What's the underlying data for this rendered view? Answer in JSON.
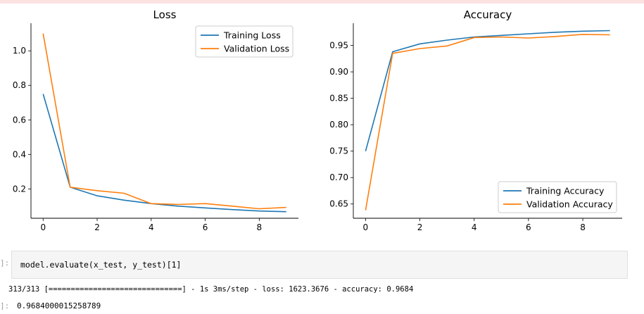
{
  "notebook": {
    "code": "model.evaluate(x_test, y_test)[1]",
    "in_prompt": "]:",
    "stdout": "313/313 [==============================] - 1s 3ms/step - loss: 1623.3676 - accuracy: 0.9684",
    "out_prompt": "]:",
    "out_value": "0.9684000015258789"
  },
  "colors": {
    "train": "#1f77b4",
    "val": "#ff7f0e"
  },
  "chart_data": [
    {
      "type": "line",
      "title": "Loss",
      "xlabel": "",
      "ylabel": "",
      "xlim": [
        -0.45,
        9.45
      ],
      "ylim": [
        0.03,
        1.16
      ],
      "xticks": [
        0,
        2,
        4,
        6,
        8
      ],
      "yticks": [
        0.2,
        0.4,
        0.6,
        0.8,
        1.0
      ],
      "ytick_labels": [
        "0.2",
        "0.4",
        "0.6",
        "0.8",
        "1.0"
      ],
      "legend_position": "top-right",
      "x": [
        0,
        1,
        2,
        3,
        4,
        5,
        6,
        7,
        8,
        9
      ],
      "series": [
        {
          "name": "Training Loss",
          "values": [
            0.75,
            0.21,
            0.16,
            0.135,
            0.115,
            0.1,
            0.09,
            0.08,
            0.072,
            0.068
          ]
        },
        {
          "name": "Validation Loss",
          "values": [
            1.1,
            0.21,
            0.19,
            0.175,
            0.115,
            0.11,
            0.115,
            0.1,
            0.085,
            0.093
          ]
        }
      ]
    },
    {
      "type": "line",
      "title": "Accuracy",
      "xlabel": "",
      "ylabel": "",
      "xlim": [
        -0.45,
        9.45
      ],
      "ylim": [
        0.623,
        0.992
      ],
      "xticks": [
        0,
        2,
        4,
        6,
        8
      ],
      "yticks": [
        0.65,
        0.7,
        0.75,
        0.8,
        0.85,
        0.9,
        0.95
      ],
      "ytick_labels": [
        "0.65",
        "0.70",
        "0.75",
        "0.80",
        "0.85",
        "0.90",
        "0.95"
      ],
      "legend_position": "bottom-right",
      "x": [
        0,
        1,
        2,
        3,
        4,
        5,
        6,
        7,
        8,
        9
      ],
      "series": [
        {
          "name": "Training Accuracy",
          "values": [
            0.75,
            0.938,
            0.953,
            0.96,
            0.966,
            0.969,
            0.972,
            0.975,
            0.977,
            0.978
          ]
        },
        {
          "name": "Validation Accuracy",
          "values": [
            0.638,
            0.935,
            0.944,
            0.949,
            0.965,
            0.966,
            0.964,
            0.967,
            0.971,
            0.97
          ]
        }
      ]
    }
  ]
}
